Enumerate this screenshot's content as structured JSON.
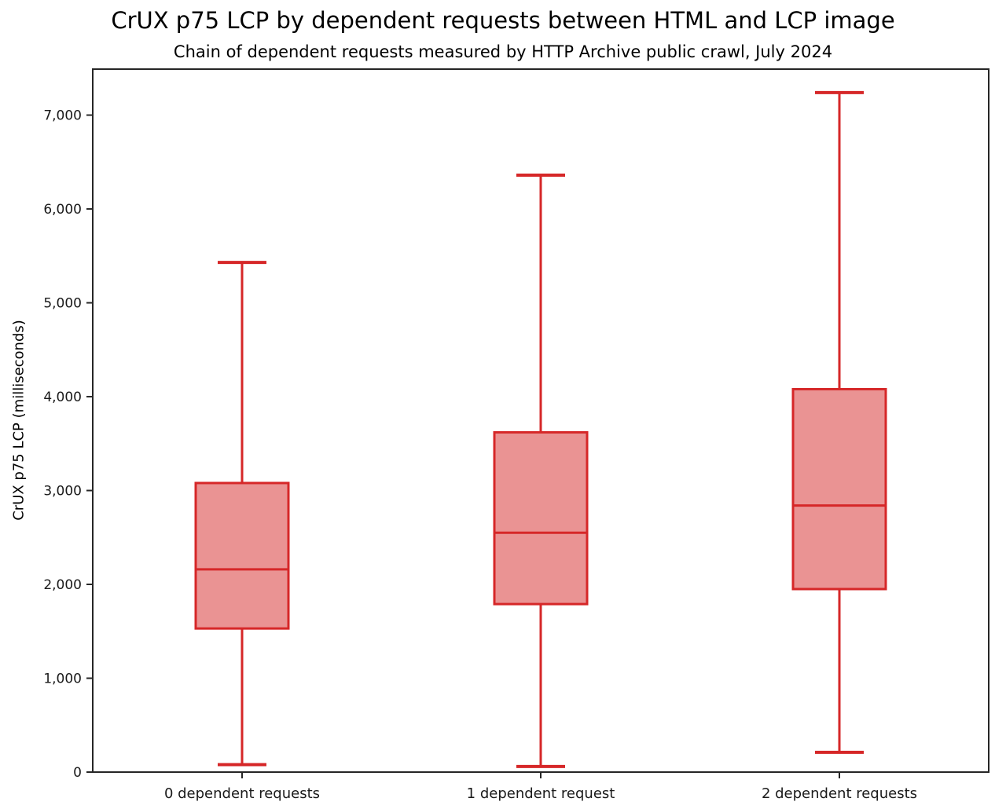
{
  "chart_data": {
    "type": "boxplot",
    "title": "CrUX p75 LCP by dependent requests between HTML and LCP image",
    "subtitle": "Chain of dependent requests measured by HTTP Archive public crawl, July 2024",
    "ylabel": "CrUX p75 LCP (milliseconds)",
    "xlabel": "",
    "categories": [
      "0 dependent requests",
      "1 dependent request",
      "2 dependent requests"
    ],
    "series": [
      {
        "name": "0 dependent requests",
        "whisker_min": 80,
        "q1": 1530,
        "median": 2160,
        "q3": 3080,
        "whisker_max": 5430
      },
      {
        "name": "1 dependent request",
        "whisker_min": 60,
        "q1": 1790,
        "median": 2550,
        "q3": 3620,
        "whisker_max": 6360
      },
      {
        "name": "2 dependent requests",
        "whisker_min": 210,
        "q1": 1950,
        "median": 2840,
        "q3": 4080,
        "whisker_max": 7240
      }
    ],
    "ylim": [
      0,
      7490
    ],
    "yticks": [
      0,
      1000,
      2000,
      3000,
      4000,
      5000,
      6000,
      7000
    ],
    "ytick_labels": [
      "0",
      "1,000",
      "2,000",
      "3,000",
      "4,000",
      "5,000",
      "6,000",
      "7,000"
    ],
    "grid": false,
    "legend": "none",
    "colors": {
      "box_line": "#d62728",
      "box_fill": "#ea9393",
      "axis": "#262626",
      "text": "#1a1a1a"
    }
  }
}
